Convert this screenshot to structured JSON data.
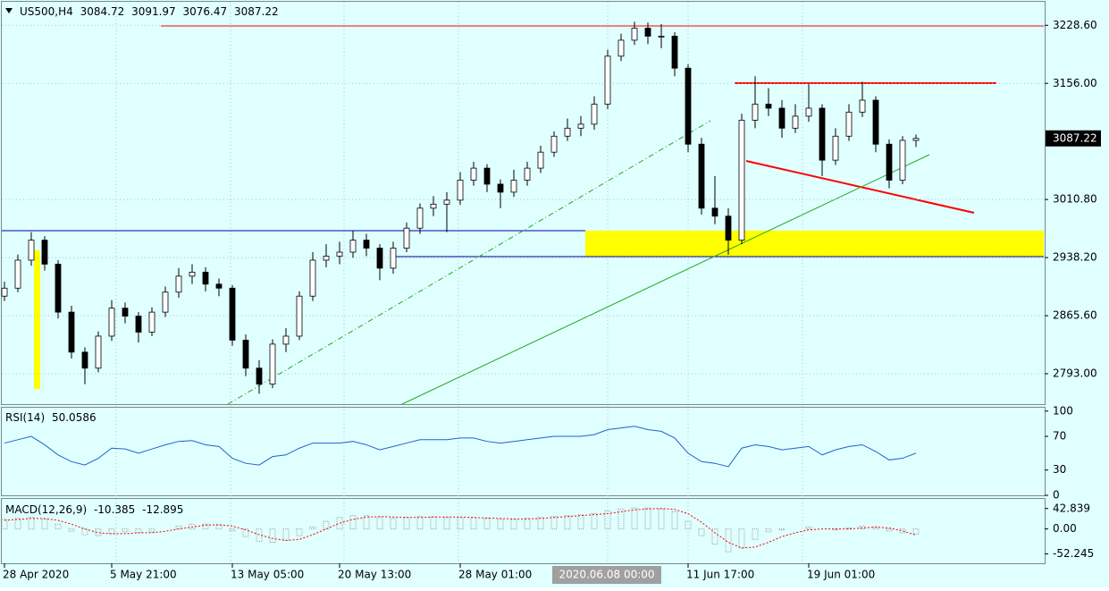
{
  "chart_data": {
    "type": "candlestick",
    "title": "US500,H4",
    "candles": [
      [
        2890,
        2908,
        2884,
        2900
      ],
      [
        2900,
        2942,
        2895,
        2935
      ],
      [
        2935,
        2970,
        2928,
        2960
      ],
      [
        2960,
        2965,
        2922,
        2930
      ],
      [
        2930,
        2935,
        2862,
        2870
      ],
      [
        2870,
        2878,
        2812,
        2820
      ],
      [
        2820,
        2826,
        2780,
        2800
      ],
      [
        2800,
        2846,
        2795,
        2840
      ],
      [
        2840,
        2885,
        2834,
        2875
      ],
      [
        2875,
        2882,
        2856,
        2865
      ],
      [
        2865,
        2870,
        2832,
        2845
      ],
      [
        2845,
        2876,
        2840,
        2870
      ],
      [
        2870,
        2902,
        2864,
        2895
      ],
      [
        2895,
        2925,
        2888,
        2915
      ],
      [
        2915,
        2930,
        2905,
        2920
      ],
      [
        2920,
        2926,
        2896,
        2905
      ],
      [
        2905,
        2912,
        2890,
        2900
      ],
      [
        2900,
        2904,
        2828,
        2835
      ],
      [
        2835,
        2842,
        2790,
        2800
      ],
      [
        2800,
        2810,
        2768,
        2780
      ],
      [
        2780,
        2836,
        2775,
        2830
      ],
      [
        2830,
        2850,
        2820,
        2840
      ],
      [
        2840,
        2896,
        2835,
        2890
      ],
      [
        2890,
        2945,
        2884,
        2935
      ],
      [
        2935,
        2955,
        2926,
        2940
      ],
      [
        2940,
        2958,
        2930,
        2945
      ],
      [
        2945,
        2972,
        2938,
        2960
      ],
      [
        2960,
        2968,
        2940,
        2950
      ],
      [
        2950,
        2955,
        2910,
        2925
      ],
      [
        2925,
        2958,
        2918,
        2950
      ],
      [
        2950,
        2982,
        2945,
        2975
      ],
      [
        2975,
        3006,
        2968,
        3000
      ],
      [
        3000,
        3015,
        2990,
        3005
      ],
      [
        3005,
        3020,
        2970,
        3010
      ],
      [
        3010,
        3045,
        3004,
        3035
      ],
      [
        3035,
        3058,
        3028,
        3050
      ],
      [
        3050,
        3055,
        3020,
        3030
      ],
      [
        3030,
        3036,
        3000,
        3020
      ],
      [
        3020,
        3048,
        3014,
        3035
      ],
      [
        3035,
        3058,
        3028,
        3050
      ],
      [
        3050,
        3078,
        3044,
        3070
      ],
      [
        3070,
        3096,
        3064,
        3090
      ],
      [
        3090,
        3112,
        3084,
        3100
      ],
      [
        3100,
        3115,
        3090,
        3105
      ],
      [
        3105,
        3140,
        3098,
        3130
      ],
      [
        3130,
        3198,
        3124,
        3190
      ],
      [
        3190,
        3218,
        3184,
        3210
      ],
      [
        3210,
        3233,
        3204,
        3225
      ],
      [
        3225,
        3232,
        3205,
        3215
      ],
      [
        3215,
        3230,
        3200,
        3215
      ],
      [
        3215,
        3220,
        3165,
        3175
      ],
      [
        3175,
        3180,
        3070,
        3080
      ],
      [
        3080,
        3088,
        2992,
        3000
      ],
      [
        3000,
        3040,
        2980,
        2990
      ],
      [
        2990,
        3000,
        2942,
        2960
      ],
      [
        2960,
        3118,
        2955,
        3110
      ],
      [
        3110,
        3165,
        3100,
        3130
      ],
      [
        3130,
        3150,
        3115,
        3125
      ],
      [
        3125,
        3135,
        3088,
        3100
      ],
      [
        3100,
        3130,
        3094,
        3115
      ],
      [
        3115,
        3155,
        3108,
        3125
      ],
      [
        3125,
        3130,
        3040,
        3060
      ],
      [
        3060,
        3100,
        3054,
        3090
      ],
      [
        3090,
        3130,
        3084,
        3120
      ],
      [
        3120,
        3158,
        3114,
        3135
      ],
      [
        3135,
        3140,
        3070,
        3080
      ],
      [
        3080,
        3086,
        3025,
        3035
      ],
      [
        3035,
        3090,
        3030,
        3084.72
      ],
      [
        3084.72,
        3091.97,
        3076.47,
        3087.22
      ]
    ],
    "categories": [
      "28 Apr 2020",
      null,
      null,
      null,
      null,
      null,
      null,
      null,
      "5 May 21:00",
      null,
      null,
      null,
      null,
      null,
      null,
      null,
      null,
      "13 May 05:00",
      null,
      null,
      null,
      null,
      null,
      null,
      null,
      "20 May 13:00",
      null,
      null,
      null,
      null,
      null,
      null,
      null,
      null,
      "28 May 01:00",
      null,
      null,
      null,
      null,
      null,
      null,
      null,
      null,
      null,
      null,
      null,
      null,
      null,
      null,
      null,
      null,
      "11 Jun 17:00",
      null,
      null,
      null,
      null,
      null,
      null,
      null,
      null,
      "19 Jun 01:00",
      null,
      null,
      null,
      null,
      null,
      null,
      null,
      null
    ],
    "crosshair_label": "2020.06.08 00:00",
    "ylim": [
      2755,
      3258
    ],
    "yticks": [
      {
        "value": 3228.6,
        "label": "3228.60"
      },
      {
        "value": 3156,
        "label": "3156.00"
      },
      {
        "value": 3010.8,
        "label": "3010.80"
      },
      {
        "value": 2938.2,
        "label": "2938.20"
      },
      {
        "value": 2865.6,
        "label": "2865.60"
      },
      {
        "value": 2793,
        "label": "2793.00"
      }
    ],
    "grid": true,
    "colors": {
      "background": "#e0ffff",
      "up": "#ffffff",
      "down": "#000000",
      "outline": "#000000"
    },
    "rsi": {
      "name": "RSI(14)",
      "color": "#1e64c8",
      "ylim": [
        0,
        104
      ],
      "yticks": [
        100,
        70,
        30,
        0
      ],
      "values": [
        62,
        66,
        70,
        60,
        48,
        40,
        36,
        44,
        56,
        55,
        50,
        55,
        60,
        64,
        65,
        60,
        58,
        44,
        38,
        36,
        46,
        48,
        56,
        62,
        62,
        62,
        64,
        60,
        54,
        58,
        62,
        66,
        66,
        66,
        68,
        68,
        64,
        62,
        64,
        66,
        68,
        70,
        70,
        70,
        72,
        78,
        80,
        82,
        78,
        76,
        68,
        50,
        40,
        38,
        34,
        56,
        60,
        58,
        54,
        56,
        58,
        48,
        54,
        58,
        60,
        52,
        42,
        44,
        50.0586
      ]
    },
    "macd": {
      "name": "MACD(12,26,9)",
      "color": "#a0a0a0",
      "signal_color": "#ff0000",
      "ylim": [
        -72,
        63
      ],
      "yticks": [
        42.839,
        {
          "value": 0,
          "label": "0.00"
        },
        -52.245
      ],
      "values": [
        20,
        22,
        24,
        20,
        10,
        -5,
        -12,
        -14,
        -10,
        -6,
        -8,
        -6,
        0,
        6,
        10,
        10,
        8,
        -4,
        -16,
        -26,
        -28,
        -24,
        -14,
        4,
        16,
        24,
        28,
        28,
        24,
        22,
        24,
        26,
        26,
        24,
        24,
        24,
        22,
        20,
        20,
        22,
        24,
        26,
        28,
        30,
        32,
        38,
        42,
        44,
        44,
        42,
        36,
        16,
        -14,
        -32,
        -48,
        -40,
        -22,
        -6,
        -2,
        0,
        4,
        0,
        -2,
        2,
        6,
        4,
        -4,
        -8,
        -10.385
      ],
      "signal": [
        18,
        20,
        22,
        22,
        18,
        10,
        0,
        -8,
        -10,
        -10,
        -8,
        -8,
        -5,
        0,
        4,
        8,
        9,
        6,
        -2,
        -12,
        -20,
        -24,
        -22,
        -12,
        0,
        12,
        20,
        25,
        26,
        25,
        24,
        24,
        25,
        25,
        25,
        24,
        23,
        22,
        21,
        21,
        22,
        24,
        26,
        28,
        30,
        32,
        36,
        40,
        42,
        43,
        41,
        32,
        14,
        -8,
        -28,
        -40,
        -38,
        -28,
        -16,
        -8,
        -2,
        0,
        0,
        0,
        2,
        4,
        2,
        -4,
        -12.895
      ]
    }
  }
}
